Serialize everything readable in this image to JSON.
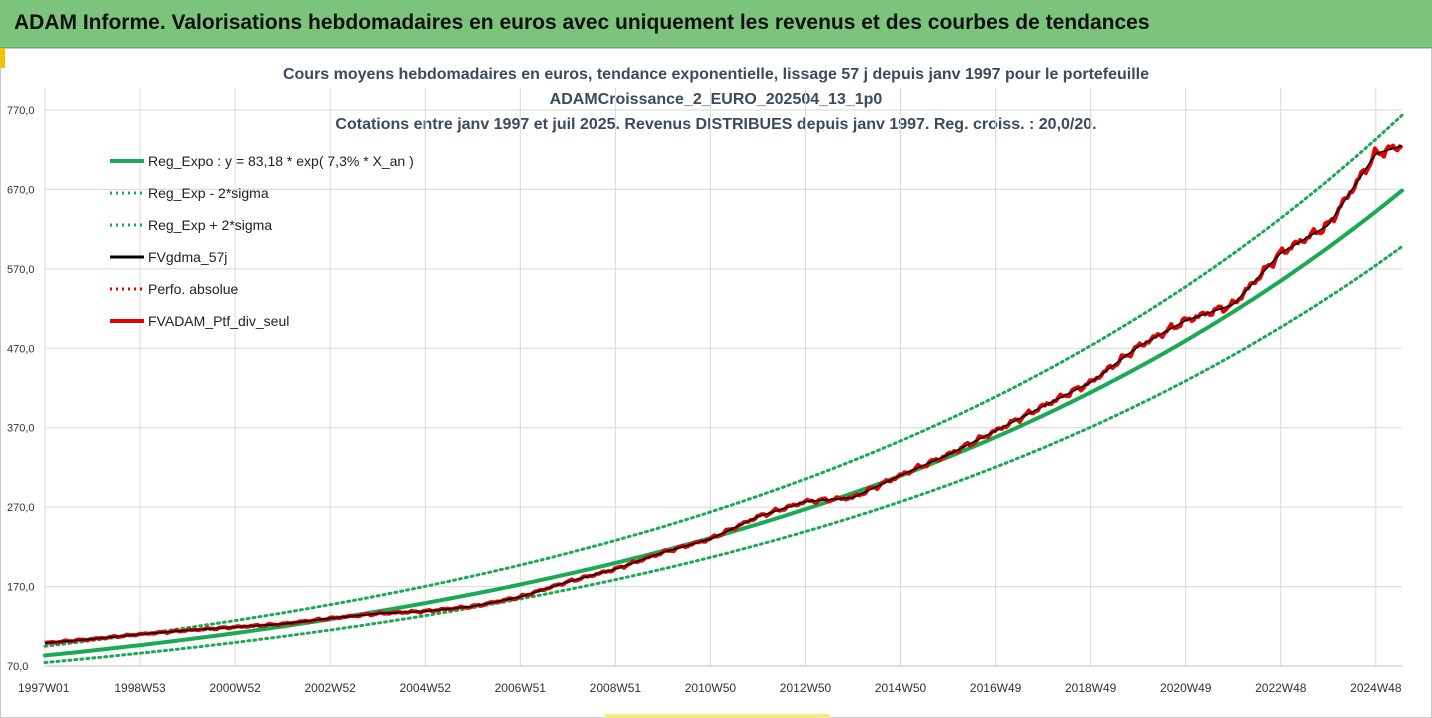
{
  "header": {
    "banner_title": "ADAM Informe. Valorisations hebdomadaires en euros avec uniquement les revenus et des courbes de tendances"
  },
  "colors": {
    "banner": "#7cc47c",
    "trend": "#1aaa55",
    "smooth": "#000000",
    "perf": "#e60000"
  },
  "chart_data": {
    "type": "line",
    "title_lines": [
      "Cours moyens hebdomadaires  en euros, tendance exponentielle, lissage 57 j depuis janv 1997 pour le portefeuille",
      "ADAMCroissance_2_EURO_202504_13_1p0",
      "Cotations  entre janv 1997 et juil 2025. Revenus DISTRIBUES depuis janv 1997. Reg. croiss. : 20,0/20."
    ],
    "ylim": [
      70,
      770
    ],
    "y_ticks": [
      "70,0",
      "170,0",
      "270,0",
      "370,0",
      "470,0",
      "570,0",
      "670,0",
      "770,0"
    ],
    "x_ticks": [
      "1997W01",
      "1998W53",
      "2000W52",
      "2002W52",
      "2004W52",
      "2006W51",
      "2008W51",
      "2010W50",
      "2012W50",
      "2014W50",
      "2016W49",
      "2018W49",
      "2020W49",
      "2022W48",
      "2024W48"
    ],
    "x_tick_years": [
      1997.0,
      1999.0,
      2001.0,
      2003.0,
      2005.0,
      2007.0,
      2009.0,
      2011.0,
      2013.0,
      2015.0,
      2017.0,
      2019.0,
      2021.0,
      2023.0,
      2025.0
    ],
    "x_range": [
      1997.0,
      2025.55
    ],
    "grid": true,
    "legend_position": "top-left",
    "regression": {
      "a": 83.18,
      "rate": 0.073
    },
    "series": [
      {
        "name": "Reg_Expo : y = 83,18 * exp( 7,3% *  X_an )",
        "style": "solid-thick",
        "color": "#1aaa55",
        "x": [
          1997.0,
          2000.0,
          2003.0,
          2006.0,
          2009.0,
          2012.0,
          2015.0,
          2018.0,
          2021.0,
          2024.0,
          2025.55
        ],
        "values": [
          83.2,
          103.2,
          128.0,
          158.8,
          197.1,
          244.5,
          303.3,
          376.3,
          466.9,
          579.3,
          649.5
        ]
      },
      {
        "name": "Reg_Exp - 2*sigma",
        "style": "dotted",
        "color": "#1aaa55",
        "x": [
          1997.0,
          2000.0,
          2003.0,
          2006.0,
          2009.0,
          2012.0,
          2015.0,
          2018.0,
          2021.0,
          2024.0,
          2025.55
        ],
        "values": [
          74.4,
          92.3,
          114.5,
          142.1,
          176.3,
          218.8,
          271.4,
          336.7,
          417.8,
          518.3,
          581.1
        ]
      },
      {
        "name": "Reg_Exp + 2*sigma",
        "style": "dotted",
        "color": "#1aaa55",
        "x": [
          1997.0,
          2000.0,
          2003.0,
          2006.0,
          2009.0,
          2012.0,
          2015.0,
          2018.0,
          2021.0,
          2024.0,
          2025.55
        ],
        "values": [
          95.0,
          117.8,
          146.2,
          181.3,
          225.0,
          279.1,
          346.3,
          429.6,
          533.1,
          661.4,
          741.6
        ]
      },
      {
        "name": "FVgdma_57j",
        "style": "solid",
        "color": "#000000",
        "x": [
          1997.0,
          1998.0,
          1999.0,
          2000.0,
          2001.0,
          2002.0,
          2003.0,
          2004.0,
          2005.0,
          2006.0,
          2007.0,
          2008.0,
          2009.0,
          2010.0,
          2011.0,
          2012.0,
          2013.0,
          2014.0,
          2015.0,
          2016.0,
          2017.0,
          2018.0,
          2019.0,
          2020.0,
          2021.0,
          2022.0,
          2023.0,
          2024.0,
          2025.0,
          2025.55
        ],
        "values": [
          99,
          104,
          110,
          115,
          119,
          123,
          130,
          136,
          139,
          145,
          157,
          176,
          192,
          213,
          230,
          258,
          277,
          282,
          310,
          336,
          366,
          397,
          427,
          472,
          505,
          525,
          590,
          625,
          715,
          725
        ]
      },
      {
        "name": "Perfo. absolue",
        "style": "dotted",
        "color": "#e60000",
        "x": [
          1997.0,
          1998.0,
          1999.0,
          2000.0,
          2001.0,
          2002.0,
          2003.0,
          2004.0,
          2005.0,
          2006.0,
          2007.0,
          2008.0,
          2009.0,
          2010.0,
          2011.0,
          2012.0,
          2013.0,
          2014.0,
          2015.0,
          2016.0,
          2017.0,
          2018.0,
          2019.0,
          2020.0,
          2021.0,
          2022.0,
          2023.0,
          2024.0,
          2025.0,
          2025.55
        ],
        "values": [
          99,
          104,
          110,
          115,
          119,
          123,
          130,
          136,
          139,
          145,
          157,
          176,
          192,
          213,
          230,
          258,
          277,
          282,
          310,
          336,
          366,
          397,
          427,
          472,
          505,
          525,
          590,
          625,
          715,
          725
        ]
      },
      {
        "name": "FVADAM_Ptf_div_seul",
        "style": "solid-thick",
        "color": "#e60000",
        "x": [
          1997.0,
          1998.0,
          1999.0,
          2000.0,
          2001.0,
          2002.0,
          2003.0,
          2004.0,
          2005.0,
          2006.0,
          2007.0,
          2008.0,
          2009.0,
          2010.0,
          2011.0,
          2012.0,
          2013.0,
          2014.0,
          2015.0,
          2016.0,
          2017.0,
          2018.0,
          2019.0,
          2020.0,
          2021.0,
          2022.0,
          2023.0,
          2024.0,
          2025.0,
          2025.55
        ],
        "values": [
          99,
          104,
          110,
          115,
          119,
          123,
          130,
          136,
          139,
          145,
          157,
          176,
          192,
          213,
          230,
          258,
          277,
          282,
          310,
          336,
          366,
          397,
          427,
          472,
          505,
          525,
          590,
          625,
          715,
          725
        ]
      }
    ]
  }
}
